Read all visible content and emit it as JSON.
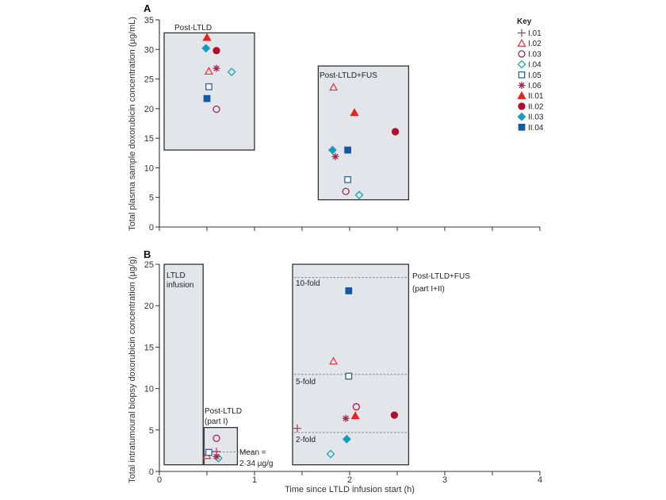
{
  "colors": {
    "I.01": "#b0345a",
    "I.02": "#e0404a",
    "I.03": "#a8234a",
    "I.04": "#1aa3b8",
    "I.05": "#2e63a0",
    "I.06": "#a8234a",
    "II.01": "#e8221e",
    "II.02": "#b0102e",
    "II.03": "#139bc0",
    "II.04": "#135aa0",
    "box_fill": "#e2e5e9",
    "box_stroke": "#333333"
  },
  "legend": {
    "title": "Key",
    "placement": "top-right",
    "entries": [
      {
        "id": "I.01",
        "label": "I.01",
        "marker": "plus",
        "filled": false
      },
      {
        "id": "I.02",
        "label": "I.02",
        "marker": "triangle",
        "filled": false
      },
      {
        "id": "I.03",
        "label": "I.03",
        "marker": "circle",
        "filled": false
      },
      {
        "id": "I.04",
        "label": "I.04",
        "marker": "diamond",
        "filled": false
      },
      {
        "id": "I.05",
        "label": "I.05",
        "marker": "square",
        "filled": false
      },
      {
        "id": "I.06",
        "label": "I.06",
        "marker": "asterisk",
        "filled": false
      },
      {
        "id": "II.01",
        "label": "II.01",
        "marker": "triangle",
        "filled": true
      },
      {
        "id": "II.02",
        "label": "II.02",
        "marker": "circle",
        "filled": true
      },
      {
        "id": "II.03",
        "label": "II.03",
        "marker": "diamond",
        "filled": true
      },
      {
        "id": "II.04",
        "label": "II.04",
        "marker": "square",
        "filled": true
      }
    ]
  },
  "chart_data": [
    {
      "panel": "A",
      "type": "scatter",
      "title": "",
      "xlabel": "",
      "ylabel": "Total plasma sample doxorubicin concentration (µg/mL)",
      "xlim": [
        0,
        4
      ],
      "ylim": [
        0,
        35
      ],
      "yticks": [
        0,
        5,
        10,
        15,
        20,
        25,
        30,
        35
      ],
      "xticks": [
        0,
        0.5,
        1,
        1.5,
        2,
        2.5,
        3,
        3.5,
        4
      ],
      "xtick_labels": [],
      "grid": false,
      "regions": [
        {
          "label": "Post-LTLD",
          "x": [
            0.05,
            1.0
          ],
          "y": [
            13,
            32.8
          ]
        },
        {
          "label": "Post-LTLD+FUS",
          "x": [
            1.67,
            2.62
          ],
          "y": [
            4.6,
            27.2
          ]
        }
      ],
      "series": [
        {
          "id": "II.01",
          "points": [
            [
              0.5,
              32.0
            ],
            [
              2.05,
              19.3
            ]
          ]
        },
        {
          "id": "II.03",
          "points": [
            [
              0.49,
              30.2
            ],
            [
              1.82,
              13.0
            ]
          ]
        },
        {
          "id": "II.02",
          "points": [
            [
              0.6,
              29.8
            ],
            [
              2.48,
              16.1
            ]
          ]
        },
        {
          "id": "I.02",
          "points": [
            [
              0.52,
              26.3
            ],
            [
              1.83,
              23.6
            ]
          ]
        },
        {
          "id": "I.06",
          "points": [
            [
              0.6,
              26.8
            ],
            [
              1.85,
              11.9
            ]
          ]
        },
        {
          "id": "I.04",
          "points": [
            [
              0.76,
              26.2
            ],
            [
              2.1,
              5.4
            ]
          ]
        },
        {
          "id": "I.05",
          "points": [
            [
              0.52,
              23.7
            ],
            [
              1.98,
              8.0
            ]
          ]
        },
        {
          "id": "II.04",
          "points": [
            [
              0.5,
              21.7
            ],
            [
              1.98,
              13.0
            ]
          ]
        },
        {
          "id": "I.03",
          "points": [
            [
              0.6,
              19.9
            ],
            [
              1.96,
              6.0
            ]
          ]
        }
      ]
    },
    {
      "panel": "B",
      "type": "scatter",
      "title": "",
      "xlabel": "Time since LTLD infusion start (h)",
      "ylabel": "Total intratumoural biopsy doxorubicin concentration (µg/g)",
      "xlim": [
        0,
        4
      ],
      "ylim": [
        0,
        25
      ],
      "yticks": [
        0,
        5,
        10,
        15,
        20,
        25
      ],
      "xticks": [
        0,
        0.5,
        1,
        1.5,
        2,
        2.5,
        3,
        3.5,
        4
      ],
      "xtick_labels": [
        "0",
        "1",
        "2",
        "3",
        "4"
      ],
      "grid": false,
      "regions": [
        {
          "label": "LTLD infusion",
          "x": [
            0.05,
            0.46
          ],
          "y": [
            0.8,
            25
          ]
        },
        {
          "label": "Post-LTLD (part I)",
          "x": [
            0.47,
            0.82
          ],
          "y": [
            0.8,
            5.3
          ]
        },
        {
          "label": "Post-LTLD+FUS (part I+II)",
          "x": [
            1.4,
            2.62
          ],
          "y": [
            0.8,
            25
          ]
        }
      ],
      "reference_lines": [
        {
          "label": "Mean = 2·34 µg/g",
          "y": 2.34,
          "x": [
            0.5,
            1.0
          ]
        },
        {
          "label": "10-fold",
          "y": 23.4,
          "x": [
            1.4,
            2.62
          ]
        },
        {
          "label": "5-fold",
          "y": 11.7,
          "x": [
            1.4,
            2.62
          ]
        },
        {
          "label": "2-fold",
          "y": 4.7,
          "x": [
            1.4,
            2.62
          ]
        }
      ],
      "series": [
        {
          "id": "I.01",
          "points": [
            [
              0.6,
              2.4
            ],
            [
              1.45,
              5.2
            ]
          ]
        },
        {
          "id": "I.02",
          "points": [
            [
              0.5,
              1.9
            ],
            [
              1.83,
              13.3
            ]
          ]
        },
        {
          "id": "I.03",
          "points": [
            [
              0.6,
              4.0
            ],
            [
              2.07,
              7.8
            ]
          ]
        },
        {
          "id": "I.04",
          "points": [
            [
              0.62,
              1.6
            ],
            [
              1.8,
              2.1
            ]
          ]
        },
        {
          "id": "I.05",
          "points": [
            [
              0.52,
              2.3
            ],
            [
              1.99,
              11.5
            ]
          ]
        },
        {
          "id": "I.06",
          "points": [
            [
              0.6,
              1.8
            ],
            [
              1.96,
              6.4
            ]
          ]
        },
        {
          "id": "II.01",
          "points": [
            [
              2.06,
              6.7
            ]
          ]
        },
        {
          "id": "II.02",
          "points": [
            [
              2.47,
              6.8
            ]
          ]
        },
        {
          "id": "II.03",
          "points": [
            [
              1.97,
              3.9
            ]
          ]
        },
        {
          "id": "II.04",
          "points": [
            [
              1.99,
              21.8
            ]
          ]
        }
      ]
    }
  ],
  "panels": {
    "A": {
      "letter": "A",
      "ylabel": "Total plasma sample doxorubicin concentration (µg/mL)",
      "region_labels": [
        "Post-LTLD",
        "Post-LTLD+FUS"
      ],
      "ytick_labels": [
        "0",
        "5",
        "10",
        "15",
        "20",
        "25",
        "30",
        "35"
      ]
    },
    "B": {
      "letter": "B",
      "ylabel": "Total intratumoural biopsy doxorubicin concentration (µg/g)",
      "xlabel": "Time since LTLD infusion start (h)",
      "ytick_labels": [
        "0",
        "5",
        "10",
        "15",
        "20",
        "25"
      ],
      "xtick_labels": [
        "0",
        "1",
        "2",
        "3",
        "4"
      ],
      "region_label_infusion_1": "LTLD",
      "region_label_infusion_2": "infusion",
      "region_label_post_1": "Post-LTLD",
      "region_label_post_2": "(part I)",
      "region_label_fus_1": "Post-LTLD+FUS",
      "region_label_fus_2": "(part I+II)",
      "mean_label_1": "Mean =",
      "mean_label_2": "2·34 µg/g",
      "fold_labels": [
        "10-fold",
        "5-fold",
        "2-fold"
      ]
    }
  }
}
